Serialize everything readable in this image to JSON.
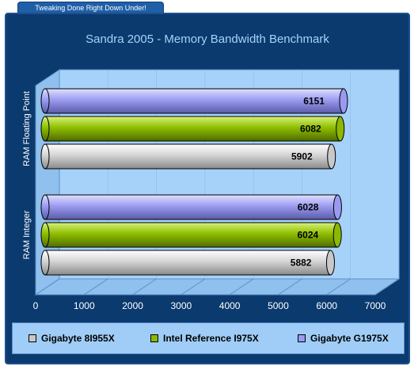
{
  "header": {
    "tagline": "Tweaking Done Right Down Under!"
  },
  "chart_data": {
    "type": "bar",
    "orientation": "horizontal",
    "style": "3d-cylinder",
    "title": "Sandra 2005 - Memory Bandwidth Benchmark",
    "categories": [
      "RAM Floating Point",
      "RAM Integer"
    ],
    "series": [
      {
        "name": "Gigabyte 8I955X",
        "values": [
          5902,
          5882
        ],
        "color": "#c8c8c8"
      },
      {
        "name": "Intel Reference I975X",
        "values": [
          6082,
          6024
        ],
        "color": "#8cb800"
      },
      {
        "name": "Gigabyte G1975X",
        "values": [
          6151,
          6028
        ],
        "color": "#9a9af0"
      }
    ],
    "xlim": [
      0,
      7000
    ],
    "xticks": [
      "0",
      "1000",
      "2000",
      "3000",
      "4000",
      "5000",
      "6000",
      "7000"
    ],
    "grid": true,
    "legend": "bottom",
    "colors": {
      "background": "#0b3a6e",
      "plot_wall": "#a6d2fa",
      "legend_bg": "#9fcdf7",
      "title": "#a6d2fa"
    }
  }
}
